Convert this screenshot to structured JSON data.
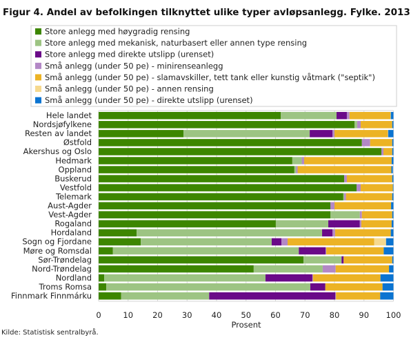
{
  "chart_data": {
    "type": "bar",
    "orientation": "horizontal",
    "stacked": true,
    "title": "Figur 4. Andel av befolkingen tilknyttet ulike typer avløpsanlegg. Fylke. 2013",
    "xlabel": "Prosent",
    "ylabel": "",
    "xlim": [
      0,
      100
    ],
    "xticks": [
      "0",
      "10",
      "20",
      "30",
      "40",
      "50",
      "60",
      "70",
      "80",
      "90",
      "100"
    ],
    "grid": true,
    "legend_position": "top",
    "source": "Kilde: Statistisk sentralbyrå.",
    "categories": [
      "Hele landet",
      "Nordsjøfylkene",
      "Resten av landet",
      "Østfold",
      "Akershus og Oslo",
      "Hedmark",
      "Oppland",
      "Buskerud",
      "Vestfold",
      "Telemark",
      "Aust-Agder",
      "Vest-Agder",
      "Rogaland",
      "Hordaland",
      "Sogn og Fjordane",
      "Møre og Romsdal",
      "Sør-Trøndelag",
      "Nord-Trøndelag",
      "Nordland",
      "Troms Romsa",
      "Finnmark Finnmárku"
    ],
    "series": [
      {
        "name": "Store anlegg med høygradig rensing",
        "color": "#3d8600",
        "values": [
          61.8,
          86.8,
          28.8,
          89.3,
          95.9,
          65.7,
          66.4,
          83.3,
          87.5,
          83.0,
          78.6,
          78.6,
          60.1,
          12.9,
          14.3,
          4.8,
          69.5,
          52.6,
          1.9,
          2.6,
          7.6
        ]
      },
      {
        "name": "Store anlegg med mekanisk, naturbasert eller annen type rensing",
        "color": "#9dc483",
        "values": [
          18.9,
          0.9,
          42.8,
          0,
          0,
          3.2,
          0.6,
          0,
          0,
          0.3,
          0,
          10.0,
          17.8,
          62.9,
          44.4,
          63.1,
          12.9,
          23.4,
          54.7,
          69.2,
          29.9
        ]
      },
      {
        "name": "Store anlegg med direkte utslipp (urenset)",
        "color": "#6a0a88",
        "values": [
          3.5,
          0,
          7.7,
          0,
          0,
          0,
          0,
          0,
          0,
          0,
          0,
          0,
          10.7,
          3.5,
          3.3,
          9.1,
          0.7,
          0,
          15.9,
          5.1,
          42.8
        ]
      },
      {
        "name": "Små anlegg (under 50 pe) - minirenseanlegg",
        "color": "#b388c6",
        "values": [
          0.9,
          1.2,
          0.7,
          2.8,
          0.7,
          0.8,
          0.5,
          0.9,
          1.4,
          0.6,
          1.4,
          0.7,
          0.5,
          0.9,
          2.1,
          0.2,
          0,
          4.4,
          0.2,
          0,
          0.2
        ]
      },
      {
        "name": "Små anlegg (under 50 pe) - slamavskiller, tett tank eller kunstig våtmark (\"septik\")",
        "color": "#ecb325",
        "values": [
          13.9,
          10.7,
          18.1,
          7.5,
          3.0,
          29.7,
          31.8,
          15.4,
          10.9,
          15.7,
          19.2,
          10.3,
          10.3,
          18.9,
          29.4,
          19.5,
          16.5,
          18.1,
          22.9,
          19.4,
          15.0
        ]
      },
      {
        "name": "Små anlegg (under 50 pe) - annen rensing",
        "color": "#f6d98e",
        "values": [
          0.1,
          0,
          0.1,
          0,
          0,
          0,
          0,
          0,
          0,
          0,
          0,
          0,
          0,
          0,
          4.0,
          0,
          0,
          0,
          0,
          0,
          0
        ]
      },
      {
        "name": "Små anlegg (under 50 pe) - direkte utslipp (urenset)",
        "color": "#0b74d1",
        "values": [
          0.9,
          0.4,
          1.8,
          0.4,
          0.4,
          0.6,
          0.5,
          0.4,
          0.2,
          0.4,
          0.8,
          0.4,
          0.6,
          0.9,
          2.5,
          3.3,
          0.4,
          1.5,
          4.4,
          3.7,
          4.5
        ]
      }
    ]
  }
}
